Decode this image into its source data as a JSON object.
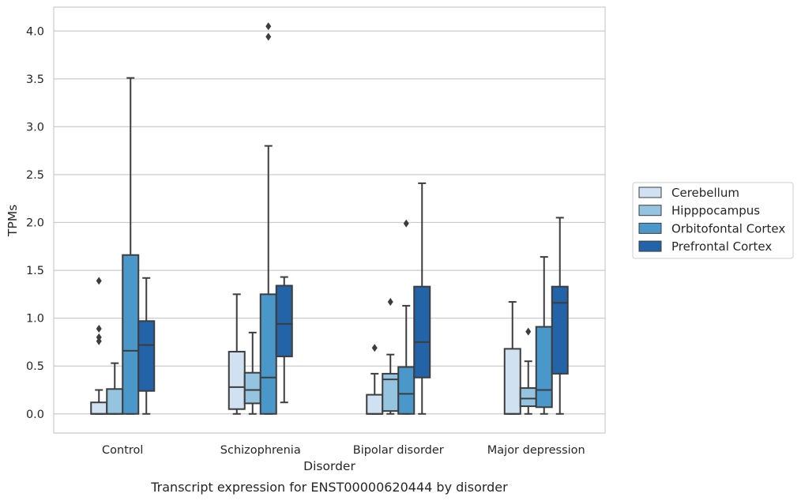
{
  "caption": "Transcript expression for ENST00000620444 by disorder",
  "chart_data": {
    "type": "boxplot",
    "xlabel": "Disorder",
    "ylabel": "TPMs",
    "ylim": [
      -0.2,
      4.25
    ],
    "yticks": [
      "0.0",
      "0.5",
      "1.0",
      "1.5",
      "2.0",
      "2.5",
      "3.0",
      "3.5",
      "4.0"
    ],
    "grid": "horizontal",
    "legend_position": "right",
    "categories": [
      "Control",
      "Schizophrenia",
      "Bipolar disorder",
      "Major depression"
    ],
    "series": [
      {
        "name": "Cerebellum",
        "color": "#d0e1f2",
        "boxes": [
          {
            "whislo": 0.0,
            "q1": 0.0,
            "med": 0.0,
            "q3": 0.12,
            "whishi": 0.25,
            "fliers": [
              0.76,
              0.8,
              0.89,
              1.39
            ]
          },
          {
            "whislo": 0.0,
            "q1": 0.05,
            "med": 0.28,
            "q3": 0.65,
            "whishi": 1.25,
            "fliers": []
          },
          {
            "whislo": 0.0,
            "q1": 0.0,
            "med": 0.0,
            "q3": 0.2,
            "whishi": 0.42,
            "fliers": [
              0.69
            ]
          },
          {
            "whislo": 0.0,
            "q1": 0.0,
            "med": 0.0,
            "q3": 0.68,
            "whishi": 1.17,
            "fliers": []
          }
        ]
      },
      {
        "name": "Hipppocampus",
        "color": "#94c4df",
        "boxes": [
          {
            "whislo": 0.0,
            "q1": 0.0,
            "med": 0.0,
            "q3": 0.26,
            "whishi": 0.53,
            "fliers": []
          },
          {
            "whislo": 0.0,
            "q1": 0.11,
            "med": 0.25,
            "q3": 0.43,
            "whishi": 0.85,
            "fliers": []
          },
          {
            "whislo": 0.0,
            "q1": 0.03,
            "med": 0.36,
            "q3": 0.42,
            "whishi": 0.62,
            "fliers": [
              1.17
            ]
          },
          {
            "whislo": 0.0,
            "q1": 0.08,
            "med": 0.16,
            "q3": 0.27,
            "whishi": 0.55,
            "fliers": [
              0.86
            ]
          }
        ]
      },
      {
        "name": "Orbitofontal Cortex",
        "color": "#4a98c9",
        "boxes": [
          {
            "whislo": 0.0,
            "q1": 0.0,
            "med": 0.66,
            "q3": 1.66,
            "whishi": 3.51,
            "fliers": []
          },
          {
            "whislo": 0.0,
            "q1": 0.0,
            "med": 0.38,
            "q3": 1.25,
            "whishi": 2.8,
            "fliers": [
              3.94,
              4.05
            ]
          },
          {
            "whislo": 0.0,
            "q1": 0.0,
            "med": 0.21,
            "q3": 0.49,
            "whishi": 1.13,
            "fliers": [
              1.99
            ]
          },
          {
            "whislo": 0.0,
            "q1": 0.07,
            "med": 0.25,
            "q3": 0.91,
            "whishi": 1.64,
            "fliers": []
          }
        ]
      },
      {
        "name": "Prefrontal Cortex",
        "color": "#2363a8",
        "boxes": [
          {
            "whislo": 0.0,
            "q1": 0.24,
            "med": 0.72,
            "q3": 0.97,
            "whishi": 1.42,
            "fliers": []
          },
          {
            "whislo": 0.12,
            "q1": 0.6,
            "med": 0.94,
            "q3": 1.34,
            "whishi": 1.43,
            "fliers": []
          },
          {
            "whislo": 0.0,
            "q1": 0.38,
            "med": 0.75,
            "q3": 1.33,
            "whishi": 2.41,
            "fliers": []
          },
          {
            "whislo": 0.0,
            "q1": 0.42,
            "med": 1.16,
            "q3": 1.33,
            "whishi": 2.05,
            "fliers": []
          }
        ]
      }
    ]
  }
}
